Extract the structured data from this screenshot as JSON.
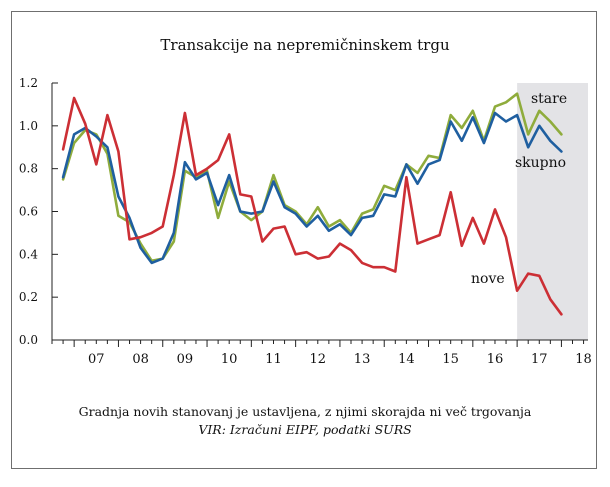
{
  "chart_data": {
    "type": "line",
    "title": "Transakcije na nepremičninskem trgu",
    "caption": "Gradnja novih stanovanj je ustavljena, z njimi skorajda ni več trgovanja",
    "source": "VIR: Izračuni EIPF, podatki SURS",
    "x_tick_labels": [
      "07",
      "08",
      "09",
      "10",
      "11",
      "12",
      "13",
      "14",
      "15",
      "16",
      "17",
      "18"
    ],
    "x_start_year": 2006.75,
    "x_step_years": 0.25,
    "xlim": [
      2006.5,
      2018.6
    ],
    "ylim": [
      0,
      1.2
    ],
    "y_ticks": [
      "0.0",
      "0.2",
      "0.4",
      "0.6",
      "0.8",
      "1.0",
      "1.2"
    ],
    "shaded_region": {
      "from": 2017.0,
      "to": 2018.6,
      "color": "#e3e3e6"
    },
    "grid": false,
    "series": [
      {
        "name": "stare",
        "color": "#8fac3c",
        "values": [
          0.75,
          0.92,
          0.98,
          0.96,
          0.87,
          0.58,
          0.55,
          0.45,
          0.37,
          0.38,
          0.46,
          0.79,
          0.76,
          0.79,
          0.57,
          0.74,
          0.6,
          0.56,
          0.6,
          0.77,
          0.63,
          0.6,
          0.54,
          0.62,
          0.53,
          0.56,
          0.5,
          0.59,
          0.61,
          0.72,
          0.7,
          0.82,
          0.78,
          0.86,
          0.85,
          1.05,
          0.99,
          1.07,
          0.93,
          1.09,
          1.11,
          1.15,
          0.96,
          1.07,
          1.02,
          0.96
        ]
      },
      {
        "name": "skupno",
        "color": "#1f5fa0",
        "values": [
          0.76,
          0.96,
          0.99,
          0.95,
          0.9,
          0.67,
          0.57,
          0.43,
          0.36,
          0.38,
          0.5,
          0.83,
          0.75,
          0.78,
          0.63,
          0.77,
          0.6,
          0.59,
          0.6,
          0.74,
          0.62,
          0.59,
          0.53,
          0.58,
          0.51,
          0.54,
          0.49,
          0.57,
          0.58,
          0.68,
          0.67,
          0.82,
          0.73,
          0.82,
          0.84,
          1.02,
          0.93,
          1.04,
          0.92,
          1.06,
          1.02,
          1.05,
          0.9,
          1.0,
          0.93,
          0.88
        ]
      },
      {
        "name": "nove",
        "color": "#cc2f35",
        "values": [
          0.89,
          1.13,
          1.01,
          0.82,
          1.05,
          0.88,
          0.47,
          0.48,
          0.5,
          0.53,
          0.77,
          1.06,
          0.77,
          0.8,
          0.84,
          0.96,
          0.68,
          0.67,
          0.46,
          0.52,
          0.53,
          0.4,
          0.41,
          0.38,
          0.39,
          0.45,
          0.42,
          0.36,
          0.34,
          0.34,
          0.32,
          0.76,
          0.45,
          0.47,
          0.49,
          0.69,
          0.44,
          0.57,
          0.45,
          0.61,
          0.48,
          0.23,
          0.31,
          0.3,
          0.19,
          0.12
        ]
      }
    ],
    "series_labels": [
      "stare",
      "skupno",
      "nove"
    ]
  }
}
